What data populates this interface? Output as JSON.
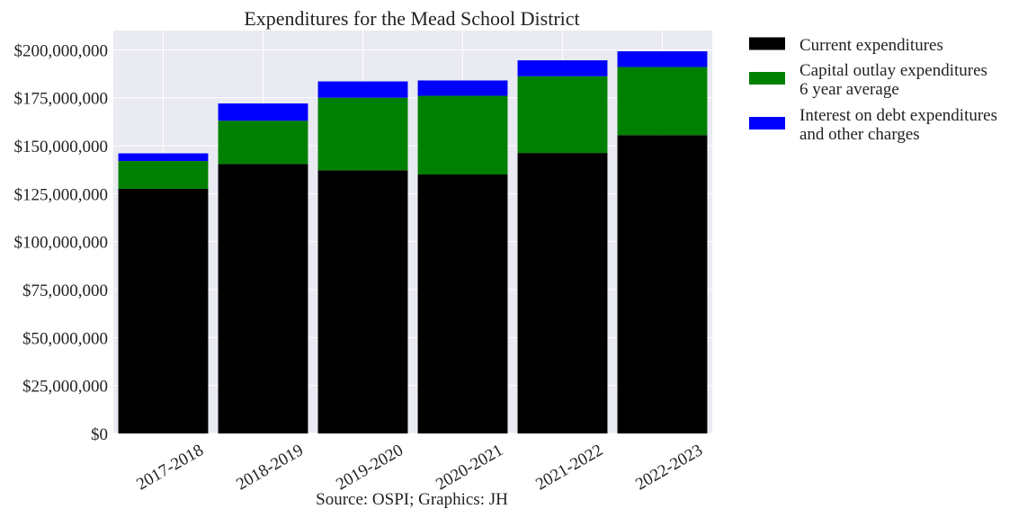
{
  "chart_data": {
    "type": "bar",
    "stacked": true,
    "title": "Expenditures for the Mead School District",
    "xlabel": "Source: OSPI; Graphics: JH",
    "ylabel": "",
    "ylim": [
      0,
      210000000
    ],
    "yticks": [
      0,
      25000000,
      50000000,
      75000000,
      100000000,
      125000000,
      150000000,
      175000000,
      200000000
    ],
    "ytick_labels": [
      "$0",
      "$25,000,000",
      "$50,000,000",
      "$75,000,000",
      "$100,000,000",
      "$125,000,000",
      "$150,000,000",
      "$175,000,000",
      "$200,000,000"
    ],
    "categories": [
      "2017-2018",
      "2018-2019",
      "2019-2020",
      "2020-2021",
      "2021-2022",
      "2022-2023"
    ],
    "grid": true,
    "legend_position": "right",
    "series": [
      {
        "name": "Current expenditures",
        "legend_lines": [
          "Current expenditures"
        ],
        "color": "#000000",
        "values": [
          127500000,
          140500000,
          137200000,
          135000000,
          146200000,
          155500000
        ]
      },
      {
        "name": "Capital outlay expenditures 6 year average",
        "legend_lines": [
          "Capital outlay expenditures",
          "6 year average"
        ],
        "color": "#008000",
        "values": [
          14500000,
          22500000,
          37800000,
          41000000,
          40000000,
          35500000
        ]
      },
      {
        "name": "Interest on debt expenditures and other charges",
        "legend_lines": [
          "Interest on debt expenditures",
          "and other charges"
        ],
        "color": "#0000ff",
        "values": [
          4000000,
          9000000,
          8500000,
          8000000,
          8300000,
          8200000
        ]
      }
    ]
  }
}
